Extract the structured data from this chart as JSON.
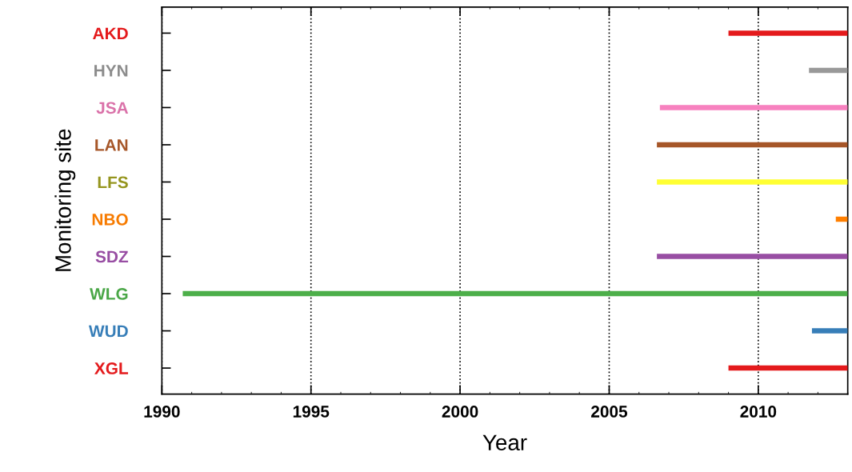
{
  "chart_data": {
    "type": "bar",
    "orientation": "horizontal",
    "xlabel": "Year",
    "ylabel": "Monitoring site",
    "categories": [
      "AKD",
      "HYN",
      "JSA",
      "LAN",
      "LFS",
      "NBO",
      "SDZ",
      "WLG",
      "WUD",
      "XGL"
    ],
    "base": [
      2009.0,
      2011.7,
      2006.7,
      2006.6,
      2006.6,
      2012.6,
      2006.6,
      1990.7,
      2011.8,
      2009.0
    ],
    "values": [
      4.0,
      1.3,
      6.3,
      6.4,
      6.4,
      0.4,
      6.4,
      22.3,
      1.2,
      4.0
    ],
    "colors": [
      "#e41a1c",
      "#999999",
      "#f781bf",
      "#a65628",
      "#ffff33",
      "#ff7f00",
      "#984ea3",
      "#4daf4a",
      "#377eb8",
      "#e41a1c"
    ],
    "xlim": [
      1990,
      2013
    ],
    "xticks": [
      1990,
      1995,
      2000,
      2005,
      2010
    ],
    "grid": "x",
    "legend": false
  }
}
